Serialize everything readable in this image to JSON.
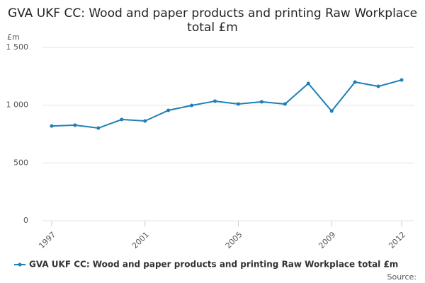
{
  "chart_data": {
    "type": "line",
    "title": "GVA UKF CC: Wood and paper products and printing Raw Workplace total £m",
    "y_label": "£m",
    "source": "Source:",
    "x": [
      1997,
      1998,
      1999,
      2000,
      2001,
      2002,
      2003,
      2004,
      2005,
      2006,
      2007,
      2008,
      2009,
      2010,
      2011,
      2012
    ],
    "series": [
      {
        "name": "GVA UKF CC: Wood and paper products and printing Raw Workplace total £m",
        "color": "#1f7fb5",
        "values": [
          820,
          827,
          802,
          876,
          863,
          955,
          998,
          1035,
          1010,
          1029,
          1010,
          1188,
          949,
          1200,
          1163,
          1218
        ]
      }
    ],
    "xlim": [
      1997,
      2012
    ],
    "xticks": [
      1997,
      2001,
      2005,
      2009,
      2012
    ],
    "ylim": [
      0,
      1500
    ],
    "yticks": [
      0,
      500,
      {
        "value": 1000,
        "label": "1 000"
      },
      {
        "value": 1500,
        "label": "1 500"
      }
    ],
    "grid": true
  }
}
